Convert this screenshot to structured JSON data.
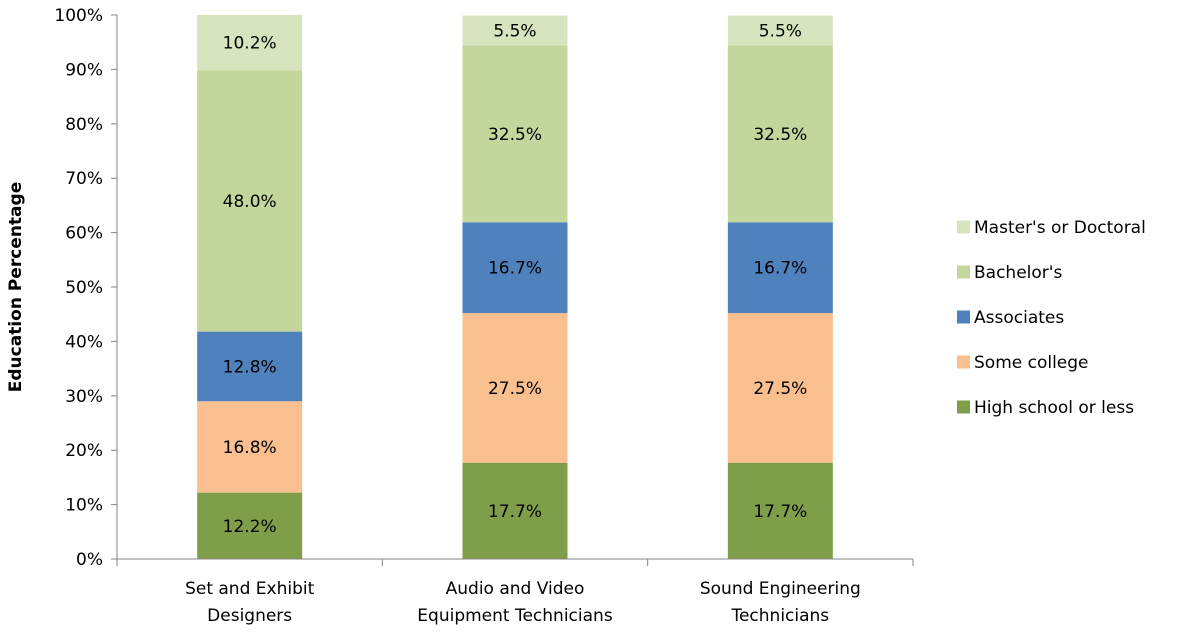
{
  "chart_data": {
    "type": "bar",
    "stacked": true,
    "ylabel": "Education Percentage",
    "xlabel": "",
    "ylim": [
      0,
      100
    ],
    "y_ticks": [
      "0%",
      "10%",
      "20%",
      "30%",
      "40%",
      "50%",
      "60%",
      "70%",
      "80%",
      "90%",
      "100%"
    ],
    "grid": false,
    "legend_position": "right",
    "categories": [
      [
        "Set and Exhibit",
        "Designers"
      ],
      [
        "Audio and Video",
        "Equipment Technicians"
      ],
      [
        "Sound Engineering",
        "Technicians"
      ]
    ],
    "series": [
      {
        "name": "High school or less",
        "color": "#7f9e4a",
        "values": [
          12.2,
          17.7,
          17.7
        ],
        "labels": [
          "12.2%",
          "17.7%",
          "17.7%"
        ]
      },
      {
        "name": "Some college",
        "color": "#f9bf8f",
        "values": [
          16.8,
          27.5,
          27.5
        ],
        "labels": [
          "16.8%",
          "27.5%",
          "27.5%"
        ]
      },
      {
        "name": "Associates",
        "color": "#4f81bd",
        "values": [
          12.8,
          16.7,
          16.7
        ],
        "labels": [
          "12.8%",
          "16.7%",
          "16.7%"
        ]
      },
      {
        "name": "Bachelor's",
        "color": "#c3d69b",
        "values": [
          48.0,
          32.5,
          32.5
        ],
        "labels": [
          "48.0%",
          "32.5%",
          "32.5%"
        ]
      },
      {
        "name": "Master's or Doctoral",
        "color": "#d7e4bd",
        "values": [
          10.2,
          5.5,
          5.5
        ],
        "labels": [
          "10.2%",
          "5.5%",
          "5.5%"
        ]
      }
    ]
  }
}
